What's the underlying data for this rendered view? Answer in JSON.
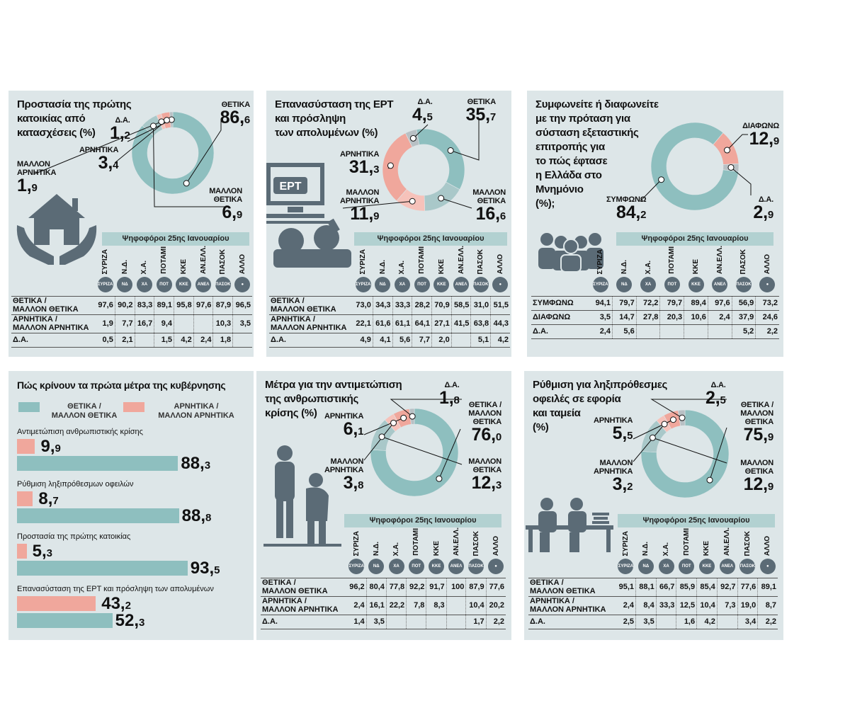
{
  "colors": {
    "positive": "#8ebfbf",
    "negative": "#f0a79c",
    "neutral": "#b8c0c4",
    "panel": "#dde6e8",
    "voters_bar": "#b2d1d1",
    "icon": "#5b6b76"
  },
  "voters_label": "Ψηφοφόροι 25ης Ιανουαρίου",
  "parties": [
    "ΣΥΡΙΖΑ",
    "Ν.Δ.",
    "Χ.Α.",
    "ΠΟΤΑΜΙ",
    "ΚΚΕ",
    "ΑΝ.ΕΛΛ.",
    "ΠΑΣΟΚ",
    "ΑΛΛΟ"
  ],
  "party_logo_text": [
    "ΣΥΡΙΖΑ",
    "ΝΔ",
    "ΧΑ",
    "ΠΟΤ",
    "ΚΚΕ",
    "ΑΝΕΛ",
    "ΠΑΣΟΚ",
    "●"
  ],
  "p1": {
    "title": [
      "Προστασία της πρώτης",
      "κατοικίας από",
      "κατασχέσεις (%)"
    ],
    "labels": [
      {
        "name": [
          "ΘΕΤΙΚΑ"
        ],
        "int": "86",
        "dec": "6"
      },
      {
        "name": [
          "Δ.Α."
        ],
        "int": "1",
        "dec": "2"
      },
      {
        "name": [
          "ΑΡΝΗΤΙΚΑ"
        ],
        "int": "3",
        "dec": "4"
      },
      {
        "name": [
          "ΜΑΛΛΟΝ",
          "ΑΡΝΗΤΙΚΑ"
        ],
        "int": "1",
        "dec": "9"
      },
      {
        "name": [
          "ΜΑΛΛΟΝ",
          "ΘΕΤΙΚΑ"
        ],
        "int": "6",
        "dec": "9"
      }
    ],
    "rows": [
      {
        "label": [
          "ΘΕΤΙΚΑ /",
          "ΜΑΛΛΟΝ ΘΕΤΙΚΑ"
        ],
        "values": [
          "97,6",
          "90,2",
          "83,3",
          "89,1",
          "95,8",
          "97,6",
          "87,9",
          "96,5"
        ]
      },
      {
        "label": [
          "ΑΡΝΗΤΙΚΑ /",
          "ΜΑΛΛΟΝ ΑΡΝΗΤΙΚΑ"
        ],
        "values": [
          "1,9",
          "7,7",
          "16,7",
          "9,4",
          "",
          "",
          "10,3",
          "3,5"
        ]
      },
      {
        "label": [
          "Δ.Α."
        ],
        "values": [
          "0,5",
          "2,1",
          "",
          "1,5",
          "4,2",
          "2,4",
          "1,8",
          ""
        ]
      }
    ]
  },
  "p2": {
    "title": [
      "Επανασύσταση της ΕΡΤ",
      "και πρόσληψη",
      "των απολυμένων (%)"
    ],
    "labels": [
      {
        "name": [
          "Δ.Α."
        ],
        "int": "4",
        "dec": "5"
      },
      {
        "name": [
          "ΘΕΤΙΚΑ"
        ],
        "int": "35",
        "dec": "7"
      },
      {
        "name": [
          "ΑΡΝΗΤΙΚΑ"
        ],
        "int": "31",
        "dec": "3"
      },
      {
        "name": [
          "ΜΑΛΛΟΝ",
          "ΑΡΝΗΤΙΚΑ"
        ],
        "int": "11",
        "dec": "9"
      },
      {
        "name": [
          "ΜΑΛΛΟΝ",
          "ΘΕΤΙΚΑ"
        ],
        "int": "16",
        "dec": "6"
      }
    ],
    "tv_text": "ΕΡΤ",
    "rows": [
      {
        "label": [
          "ΘΕΤΙΚΑ /",
          "ΜΑΛΛΟΝ ΘΕΤΙΚΑ"
        ],
        "values": [
          "73,0",
          "34,3",
          "33,3",
          "28,2",
          "70,9",
          "58,5",
          "31,0",
          "51,5"
        ]
      },
      {
        "label": [
          "ΑΡΝΗΤΙΚΑ /",
          "ΜΑΛΛΟΝ ΑΡΝΗΤΙΚΑ"
        ],
        "values": [
          "22,1",
          "61,6",
          "61,1",
          "64,1",
          "27,1",
          "41,5",
          "63,8",
          "44,3"
        ]
      },
      {
        "label": [
          "Δ.Α."
        ],
        "values": [
          "4,9",
          "4,1",
          "5,6",
          "7,7",
          "2,0",
          "",
          "5,1",
          "4,2"
        ]
      }
    ]
  },
  "p3": {
    "title": [
      "Συμφωνείτε ή διαφωνείτε",
      "με την πρόταση για",
      "σύσταση εξεταστικής",
      "επιτροπής για",
      "το  πώς έφτασε",
      "η Ελλάδα στο",
      "Μνημόνιο",
      "(%);"
    ],
    "labels": [
      {
        "name": [
          "ΔΙΑΦΩΝΩ"
        ],
        "int": "12",
        "dec": "9"
      },
      {
        "name": [
          "ΣΥΜΦΩΝΩ"
        ],
        "int": "84",
        "dec": "2"
      },
      {
        "name": [
          "Δ.Α."
        ],
        "int": "2",
        "dec": "9"
      }
    ],
    "rows": [
      {
        "label": [
          "ΣΥΜΦΩΝΩ"
        ],
        "values": [
          "94,1",
          "79,7",
          "72,2",
          "79,7",
          "89,4",
          "97,6",
          "56,9",
          "73,2"
        ]
      },
      {
        "label": [
          "ΔΙΑΦΩΝΩ"
        ],
        "values": [
          "3,5",
          "14,7",
          "27,8",
          "20,3",
          "10,6",
          "2,4",
          "37,9",
          "24,6"
        ]
      },
      {
        "label": [
          "Δ.Α."
        ],
        "values": [
          "2,4",
          "5,6",
          "",
          "",
          "",
          "",
          "5,2",
          "2,2"
        ]
      }
    ]
  },
  "p4": {
    "title": "Πώς κρίνουν τα πρώτα μέτρα της κυβέρνησης",
    "legend_pos": [
      "ΘΕΤΙΚΑ /",
      "ΜΑΛΛΟΝ ΘΕΤΙΚΑ"
    ],
    "legend_neg": [
      "ΑΡΝΗΤΙΚΑ /",
      "ΜΑΛΛΟΝ ΑΡΝΗΤΙΚΑ"
    ],
    "items": [
      {
        "label": "Αντιμετώπιση ανθρωπιστικής κρίσης",
        "neg": {
          "int": "9",
          "dec": "9"
        },
        "pos": {
          "int": "88",
          "dec": "3"
        }
      },
      {
        "label": "Ρύθμιση ληξιπρόθεσμων οφειλών",
        "neg": {
          "int": "8",
          "dec": "7"
        },
        "pos": {
          "int": "88",
          "dec": "8"
        }
      },
      {
        "label": "Προστασία της πρώτης κατοικίας",
        "neg": {
          "int": "5",
          "dec": "3"
        },
        "pos": {
          "int": "93",
          "dec": "5"
        }
      },
      {
        "label": "Επανασύσταση της ΕΡΤ και πρόσληψη των απολυμένων",
        "neg": {
          "int": "43",
          "dec": "2"
        },
        "pos": {
          "int": "52",
          "dec": "3"
        }
      }
    ]
  },
  "p5": {
    "title": [
      "Μέτρα για την αντιμετώπιση",
      "της ανθρωπιστικής",
      "κρίσης (%)"
    ],
    "labels": [
      {
        "name": [
          "Δ.Α."
        ],
        "int": "1",
        "dec": "8"
      },
      {
        "name": [
          "ΘΕΤΙΚΑ /",
          "ΜΑΛΛΟΝ",
          "ΘΕΤΙΚΑ"
        ],
        "int": "76",
        "dec": "0"
      },
      {
        "name": [
          "ΑΡΝΗΤΙΚΑ"
        ],
        "int": "6",
        "dec": "1"
      },
      {
        "name": [
          "ΜΑΛΛΟΝ",
          "ΑΡΝΗΤΙΚΑ"
        ],
        "int": "3",
        "dec": "8"
      },
      {
        "name": [
          "ΜΑΛΛΟΝ",
          "ΘΕΤΙΚΑ"
        ],
        "int": "12",
        "dec": "3"
      }
    ],
    "rows": [
      {
        "label": [
          "ΘΕΤΙΚΑ /",
          "ΜΑΛΛΟΝ ΘΕΤΙΚΑ"
        ],
        "values": [
          "96,2",
          "80,4",
          "77,8",
          "92,2",
          "91,7",
          "100",
          "87,9",
          "77,6"
        ]
      },
      {
        "label": [
          "ΑΡΝΗΤΙΚΑ /",
          "ΜΑΛΛΟΝ ΑΡΝΗΤΙΚΑ"
        ],
        "values": [
          "2,4",
          "16,1",
          "22,2",
          "7,8",
          "8,3",
          "",
          "10,4",
          "20,2"
        ]
      },
      {
        "label": [
          "Δ.Α."
        ],
        "values": [
          "1,4",
          "3,5",
          "",
          "",
          "",
          "",
          "1,7",
          "2,2"
        ]
      }
    ]
  },
  "p6": {
    "title": [
      "Ρύθμιση για ληξιπρόθεσμες",
      "οφειλές σε εφορία",
      "και ταμεία",
      "(%)"
    ],
    "labels": [
      {
        "name": [
          "Δ.Α."
        ],
        "int": "2",
        "dec": "5"
      },
      {
        "name": [
          "ΘΕΤΙΚΑ /",
          "ΜΑΛΛΟΝ",
          "ΘΕΤΙΚΑ"
        ],
        "int": "75",
        "dec": "9"
      },
      {
        "name": [
          "ΑΡΝΗΤΙΚΑ"
        ],
        "int": "5",
        "dec": "5"
      },
      {
        "name": [
          "ΜΑΛΛΟΝ",
          "ΑΡΝΗΤΙΚΑ"
        ],
        "int": "3",
        "dec": "2"
      },
      {
        "name": [
          "ΜΑΛΛΟΝ",
          "ΘΕΤΙΚΑ"
        ],
        "int": "12",
        "dec": "9"
      }
    ],
    "rows": [
      {
        "label": [
          "ΘΕΤΙΚΑ /",
          "ΜΑΛΛΟΝ ΘΕΤΙΚΑ"
        ],
        "values": [
          "95,1",
          "88,1",
          "66,7",
          "85,9",
          "85,4",
          "92,7",
          "77,6",
          "89,1"
        ]
      },
      {
        "label": [
          "ΑΡΝΗΤΙΚΑ /",
          "ΜΑΛΛΟΝ ΑΡΝΗΤΙΚΑ"
        ],
        "values": [
          "2,4",
          "8,4",
          "33,3",
          "12,5",
          "10,4",
          "7,3",
          "19,0",
          "8,7"
        ]
      },
      {
        "label": [
          "Δ.Α."
        ],
        "values": [
          "2,5",
          "3,5",
          "",
          "1,6",
          "4,2",
          "",
          "3,4",
          "2,2"
        ]
      }
    ]
  },
  "chart_data": [
    {
      "type": "pie",
      "title": "Προστασία της πρώτης κατοικίας από κατασχέσεις (%)",
      "categories": [
        "ΘΕΤΙΚΑ",
        "ΜΑΛΛΟΝ ΘΕΤΙΚΑ",
        "ΜΑΛΛΟΝ ΑΡΝΗΤΙΚΑ",
        "ΑΡΝΗΤΙΚΑ",
        "Δ.Α."
      ],
      "values": [
        86.6,
        6.9,
        1.9,
        3.4,
        1.2
      ]
    },
    {
      "type": "pie",
      "title": "Επανασύσταση της ΕΡΤ και πρόσληψη των απολυμένων (%)",
      "categories": [
        "ΘΕΤΙΚΑ",
        "ΜΑΛΛΟΝ ΘΕΤΙΚΑ",
        "ΜΑΛΛΟΝ ΑΡΝΗΤΙΚΑ",
        "ΑΡΝΗΤΙΚΑ",
        "Δ.Α."
      ],
      "values": [
        35.7,
        16.6,
        11.9,
        31.3,
        4.5
      ]
    },
    {
      "type": "pie",
      "title": "Συμφωνείτε ή διαφωνείτε με την πρόταση για σύσταση εξεταστικής επιτροπής για το πώς έφτασε η Ελλάδα στο Μνημόνιο (%);",
      "categories": [
        "ΔΙΑΦΩΝΩ",
        "Δ.Α.",
        "ΣΥΜΦΩΝΩ"
      ],
      "values": [
        12.9,
        2.9,
        84.2
      ]
    },
    {
      "type": "bar",
      "title": "Πώς κρίνουν τα πρώτα μέτρα της κυβέρνησης",
      "categories": [
        "Αντιμετώπιση ανθρωπιστικής κρίσης",
        "Ρύθμιση ληξιπρόθεσμων οφειλών",
        "Προστασία της πρώτης κατοικίας",
        "Επανασύσταση της ΕΡΤ και πρόσληψη των απολυμένων"
      ],
      "series": [
        {
          "name": "ΘΕΤΙΚΑ / ΜΑΛΛΟΝ ΘΕΤΙΚΑ",
          "values": [
            88.3,
            88.8,
            93.5,
            52.3
          ]
        },
        {
          "name": "ΑΡΝΗΤΙΚΑ / ΜΑΛΛΟΝ ΑΡΝΗΤΙΚΑ",
          "values": [
            9.9,
            8.7,
            5.3,
            43.2
          ]
        }
      ],
      "xlim": [
        0,
        100
      ]
    },
    {
      "type": "pie",
      "title": "Μέτρα για την αντιμετώπιση της ανθρωπιστικής κρίσης (%)",
      "categories": [
        "ΘΕΤΙΚΑ / ΜΑΛΛΟΝ ΘΕΤΙΚΑ",
        "ΜΑΛΛΟΝ ΘΕΤΙΚΑ",
        "ΜΑΛΛΟΝ ΑΡΝΗΤΙΚΑ",
        "ΑΡΝΗΤΙΚΑ",
        "Δ.Α."
      ],
      "values": [
        76.0,
        12.3,
        3.8,
        6.1,
        1.8
      ]
    },
    {
      "type": "pie",
      "title": "Ρύθμιση για ληξιπρόθεσμες οφειλές σε εφορία και ταμεία (%)",
      "categories": [
        "ΘΕΤΙΚΑ / ΜΑΛΛΟΝ ΘΕΤΙΚΑ",
        "ΜΑΛΛΟΝ ΘΕΤΙΚΑ",
        "ΜΑΛΛΟΝ ΑΡΝΗΤΙΚΑ",
        "ΑΡΝΗΤΙΚΑ",
        "Δ.Α."
      ],
      "values": [
        75.9,
        12.9,
        3.2,
        5.5,
        2.5
      ]
    }
  ]
}
